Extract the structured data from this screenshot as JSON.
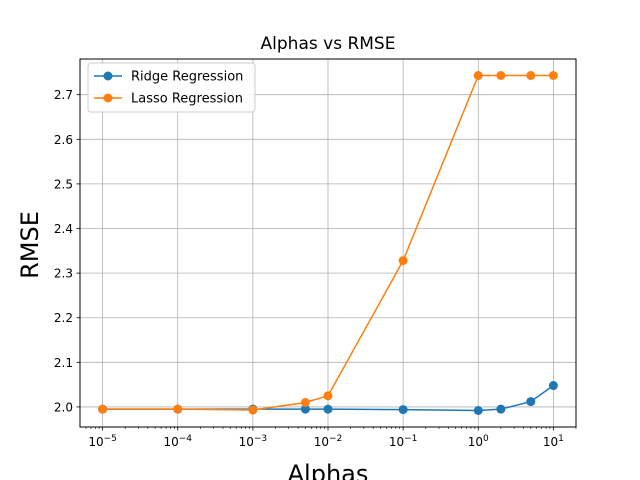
{
  "chart_data": {
    "type": "line",
    "title": "Alphas vs RMSE",
    "xlabel": "Alphas",
    "ylabel": "RMSE",
    "xscale": "log",
    "xlim": [
      5e-06,
      20
    ],
    "ylim": [
      1.955,
      2.78
    ],
    "grid": true,
    "legend_position": "top-left",
    "x_ticks": [
      {
        "value": 1e-05,
        "base": "10",
        "exp": "−5"
      },
      {
        "value": 0.0001,
        "base": "10",
        "exp": "−4"
      },
      {
        "value": 0.001,
        "base": "10",
        "exp": "−3"
      },
      {
        "value": 0.01,
        "base": "10",
        "exp": "−2"
      },
      {
        "value": 0.1,
        "base": "10",
        "exp": "−1"
      },
      {
        "value": 1,
        "base": "10",
        "exp": "0"
      },
      {
        "value": 10,
        "base": "10",
        "exp": "1"
      }
    ],
    "y_ticks": [
      {
        "value": 2.0,
        "label": "2.0"
      },
      {
        "value": 2.1,
        "label": "2.1"
      },
      {
        "value": 2.2,
        "label": "2.2"
      },
      {
        "value": 2.3,
        "label": "2.3"
      },
      {
        "value": 2.4,
        "label": "2.4"
      },
      {
        "value": 2.5,
        "label": "2.5"
      },
      {
        "value": 2.6,
        "label": "2.6"
      },
      {
        "value": 2.7,
        "label": "2.7"
      }
    ],
    "series": [
      {
        "name": "Ridge Regression",
        "color": "#1f77b4",
        "x": [
          1e-05,
          0.0001,
          0.001,
          0.005,
          0.01,
          0.1,
          1,
          2,
          5,
          10
        ],
        "y": [
          1.995,
          1.995,
          1.995,
          1.995,
          1.995,
          1.994,
          1.992,
          1.995,
          2.012,
          2.048
        ]
      },
      {
        "name": "Lasso Regression",
        "color": "#ff7f0e",
        "x": [
          1e-05,
          0.0001,
          0.001,
          0.005,
          0.01,
          0.1,
          1,
          2,
          5,
          10
        ],
        "y": [
          1.995,
          1.995,
          1.993,
          2.01,
          2.025,
          2.328,
          2.743,
          2.743,
          2.743,
          2.743
        ]
      }
    ]
  }
}
